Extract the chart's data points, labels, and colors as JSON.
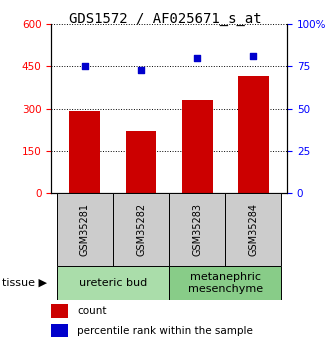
{
  "title": "GDS1572 / AF025671_s_at",
  "samples": [
    "GSM35281",
    "GSM35282",
    "GSM35283",
    "GSM35284"
  ],
  "counts": [
    290,
    220,
    330,
    415
  ],
  "percentiles": [
    75,
    73,
    80,
    81
  ],
  "ylim_left": [
    0,
    600
  ],
  "ylim_right": [
    0,
    100
  ],
  "yticks_left": [
    0,
    150,
    300,
    450,
    600
  ],
  "yticks_right": [
    0,
    25,
    50,
    75,
    100
  ],
  "bar_color": "#cc0000",
  "dot_color": "#0000cc",
  "tissue_groups": [
    {
      "label": "ureteric bud",
      "samples": [
        0,
        1
      ],
      "color": "#aaddaa"
    },
    {
      "label": "metanephric\nmesenchyme",
      "samples": [
        2,
        3
      ],
      "color": "#88cc88"
    }
  ],
  "tissue_label": "tissue",
  "legend_count_label": "count",
  "legend_pct_label": "percentile rank within the sample",
  "bar_width": 0.55,
  "sample_box_color": "#cccccc",
  "title_fontsize": 10,
  "tick_fontsize": 7.5,
  "legend_fontsize": 7.5,
  "sample_fontsize": 7.0,
  "tissue_fontsize": 8.0
}
